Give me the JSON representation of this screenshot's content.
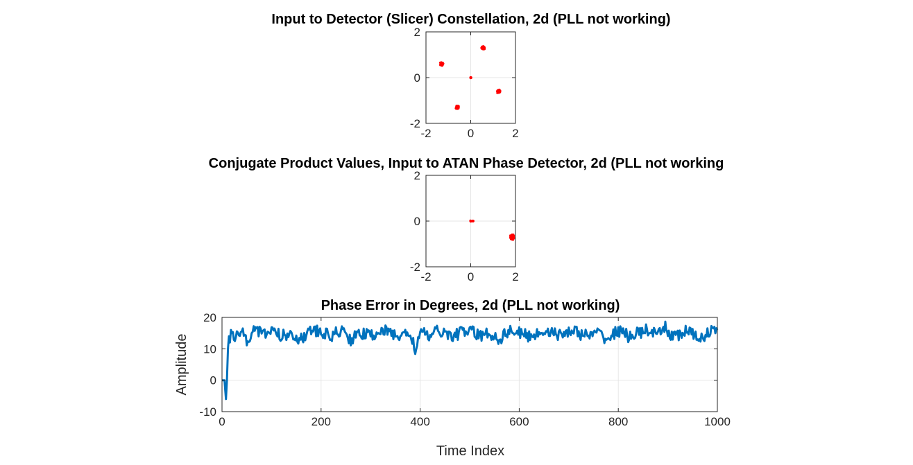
{
  "chart_data": [
    {
      "type": "scatter",
      "title": "Input to Detector (Slicer) Constellation, 2d (PLL not working)",
      "xlabel": "",
      "ylabel": "",
      "xlim": [
        -2,
        2
      ],
      "ylim": [
        -2,
        2
      ],
      "xticks": [
        "-2",
        "0",
        "2"
      ],
      "yticks": [
        "-2",
        "0",
        "2"
      ],
      "grid": true,
      "color": "#ff0000",
      "clusters": [
        {
          "x": -1.3,
          "y": 0.6
        },
        {
          "x": 0.55,
          "y": 1.3
        },
        {
          "x": 1.25,
          "y": -0.6
        },
        {
          "x": -0.6,
          "y": -1.3
        },
        {
          "x": 0.0,
          "y": 0.0
        }
      ]
    },
    {
      "type": "scatter",
      "title": "Conjugate Product Values, Input to ATAN Phase Detector, 2d (PLL not working",
      "xlabel": "",
      "ylabel": "",
      "xlim": [
        -2,
        2
      ],
      "ylim": [
        -2,
        2
      ],
      "xticks": [
        "-2",
        "0",
        "2"
      ],
      "yticks": [
        "-2",
        "0",
        "2"
      ],
      "grid": true,
      "color": "#ff0000",
      "clusters": [
        {
          "x": 1.85,
          "y": -0.7
        },
        {
          "x": 0.0,
          "y": 0.0
        },
        {
          "x": 0.1,
          "y": 0.0
        }
      ]
    },
    {
      "type": "line",
      "title": "Phase Error in Degrees, 2d (PLL not working)",
      "xlabel": "Time Index",
      "ylabel": "Amplitude",
      "xlim": [
        0,
        1000
      ],
      "ylim": [
        -10,
        20
      ],
      "xticks": [
        "0",
        "200",
        "400",
        "600",
        "800",
        "1000"
      ],
      "yticks": [
        "-10",
        "0",
        "10",
        "20"
      ],
      "grid": true,
      "color": "#0072bd",
      "series": [
        {
          "x": [
            0,
            5,
            8,
            10,
            12,
            14,
            16,
            18,
            20,
            30,
            40,
            50,
            60,
            70,
            80,
            90,
            100,
            120,
            140,
            160,
            180,
            200,
            220,
            240,
            260,
            280,
            300,
            320,
            340,
            360,
            380,
            390,
            400,
            420,
            440,
            460,
            480,
            500,
            520,
            540,
            560,
            580,
            600,
            620,
            640,
            660,
            680,
            700,
            720,
            740,
            760,
            780,
            800,
            820,
            840,
            860,
            880,
            895,
            900,
            920,
            940,
            960,
            980,
            1000
          ],
          "y": [
            0,
            0,
            -6,
            0,
            10,
            14,
            12,
            16,
            15,
            14,
            16,
            13,
            15,
            17,
            14,
            15,
            16,
            14,
            15,
            13,
            16,
            15,
            14,
            16,
            13,
            15,
            14,
            16,
            15,
            14,
            15,
            10,
            15,
            14,
            16,
            14,
            15,
            16,
            14,
            15,
            13,
            16,
            15,
            14,
            15,
            16,
            14,
            16,
            15,
            14,
            15,
            13,
            16,
            14,
            15,
            16,
            14,
            17,
            15,
            14,
            16,
            13,
            15,
            16
          ]
        }
      ]
    }
  ]
}
